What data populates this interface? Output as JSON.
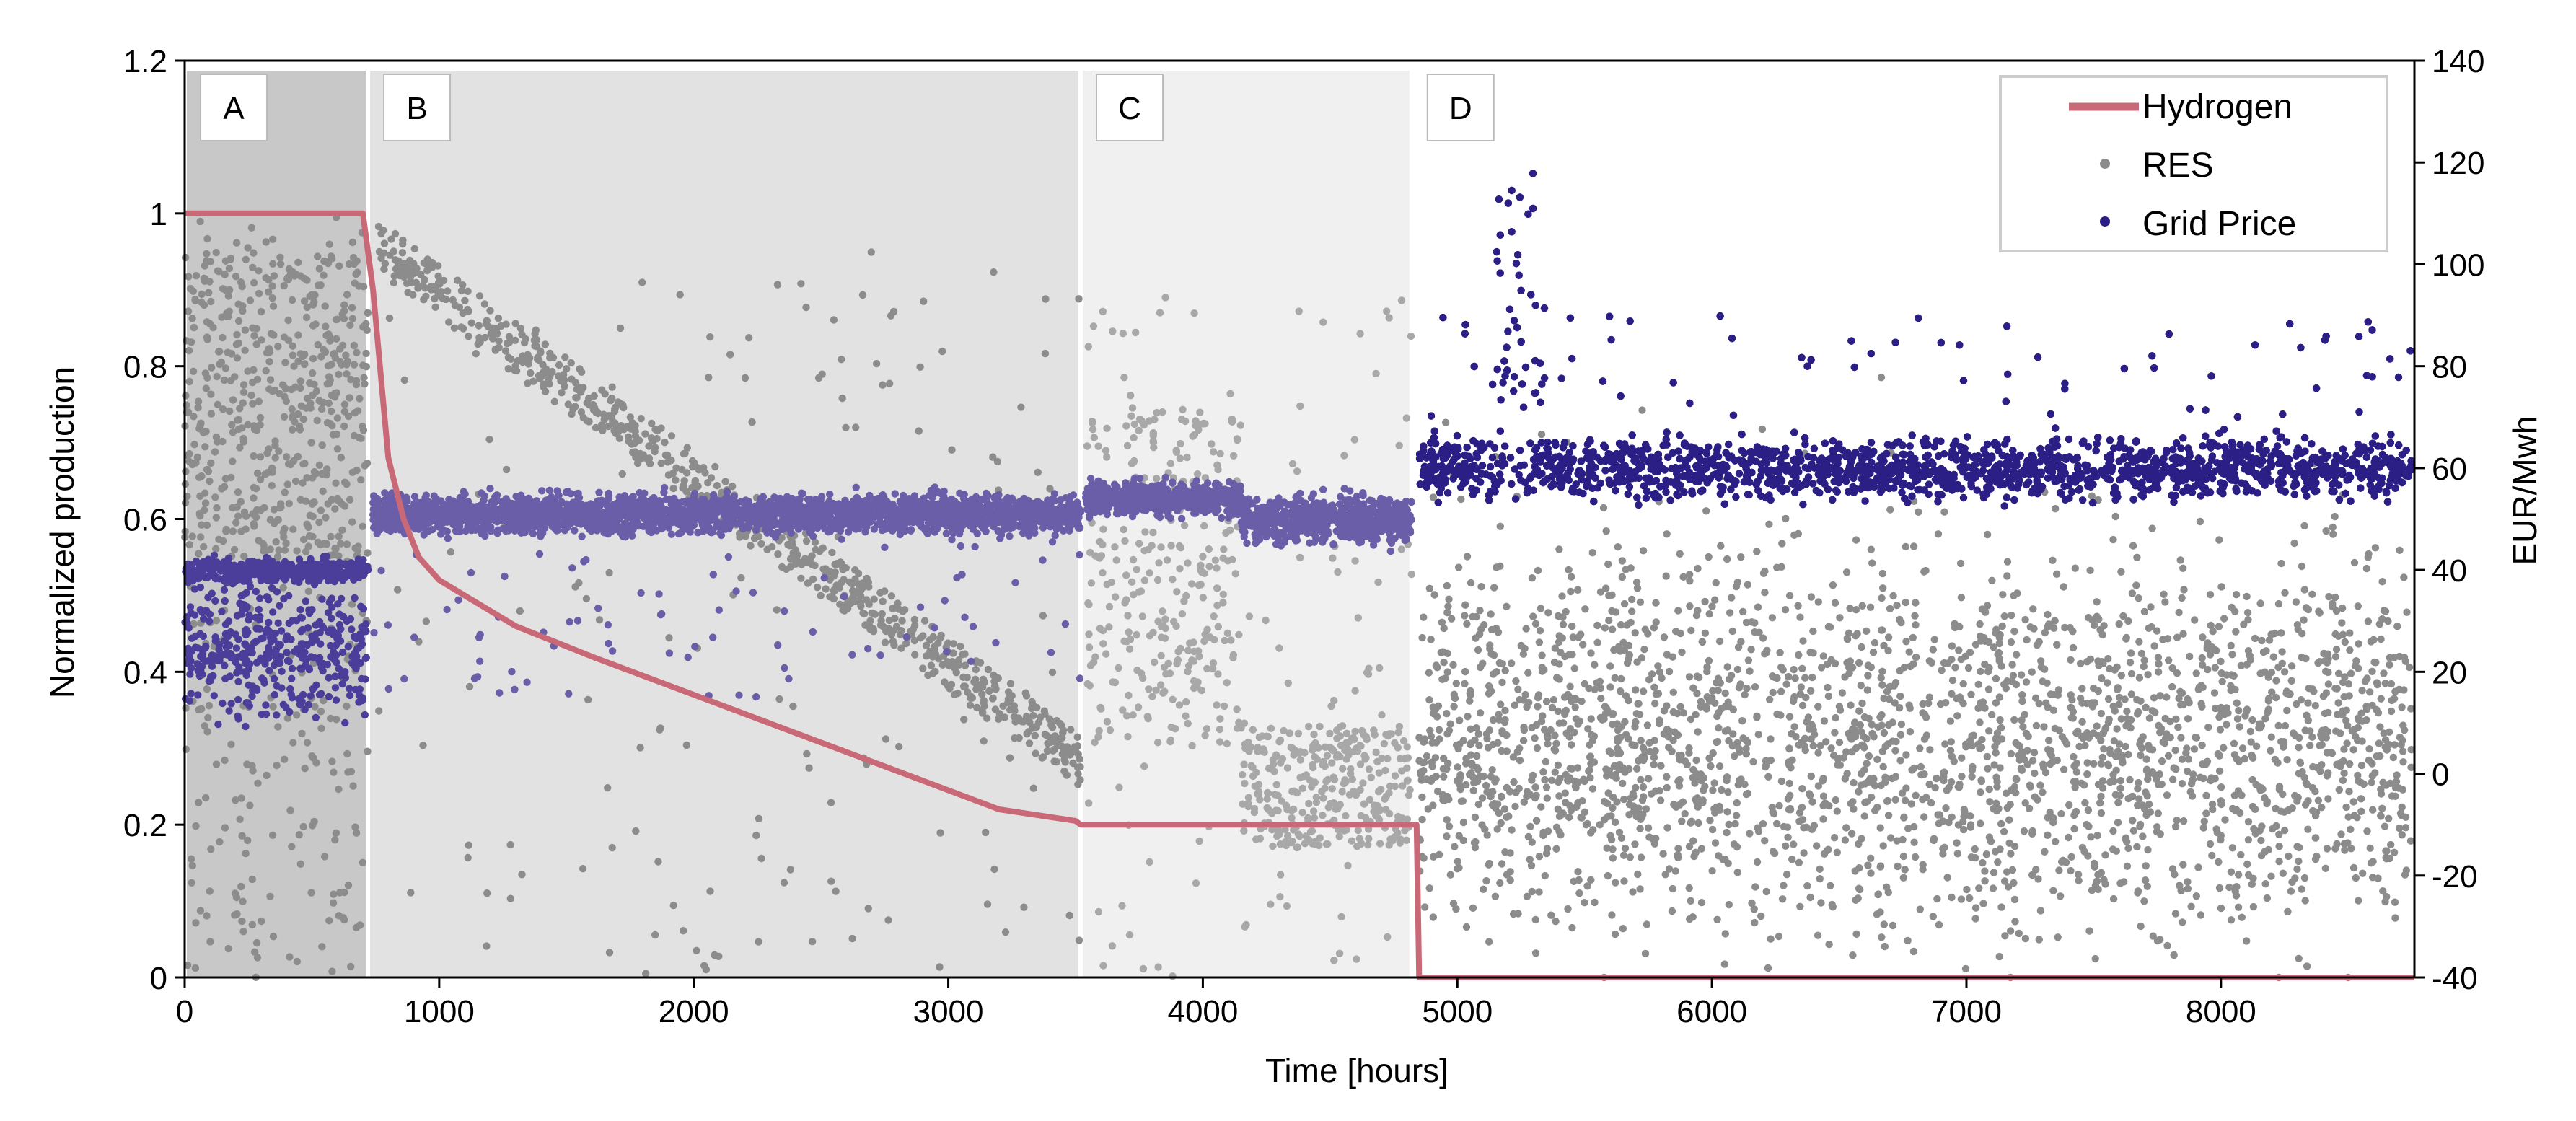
{
  "chart_data": {
    "type": "scatter",
    "xlabel": "Time [hours]",
    "ylabel": "Normalized production",
    "y2label": "EUR/Mwh",
    "xlim": [
      0,
      8760
    ],
    "ylim": [
      0,
      1.2
    ],
    "y2lim": [
      -40,
      140
    ],
    "x_ticks": [
      0,
      1000,
      2000,
      3000,
      4000,
      5000,
      6000,
      7000,
      8000
    ],
    "y_ticks": [
      "0",
      "0.2",
      "0.4",
      "0.6",
      "0.8",
      "1",
      "1.2"
    ],
    "y_tick_values": [
      0,
      0.2,
      0.4,
      0.6,
      0.8,
      1.0,
      1.2
    ],
    "y2_ticks": [
      -40,
      -20,
      0,
      20,
      40,
      60,
      80,
      100,
      120,
      140
    ],
    "grid": false,
    "legend_position": "top-right",
    "regions": [
      {
        "label": "A",
        "x_start": 0,
        "x_end": 720,
        "shade": "#c8c8c8"
      },
      {
        "label": "B",
        "x_start": 720,
        "x_end": 3520,
        "shade": "#e2e2e2"
      },
      {
        "label": "C",
        "x_start": 3520,
        "x_end": 4820,
        "shade": "#f0f0f0"
      },
      {
        "label": "D",
        "x_start": 4820,
        "x_end": 8760,
        "shade": "#ffffff"
      }
    ],
    "series": [
      {
        "name": "Hydrogen",
        "kind": "line",
        "axis": "left",
        "color": "#c96876",
        "x": [
          0,
          700,
          740,
          800,
          860,
          920,
          1000,
          1100,
          1300,
          1600,
          2000,
          2400,
          2800,
          3200,
          3500,
          3520,
          4840,
          4850,
          8760
        ],
        "y": [
          1.0,
          1.0,
          0.9,
          0.68,
          0.6,
          0.55,
          0.52,
          0.5,
          0.46,
          0.42,
          0.37,
          0.32,
          0.27,
          0.22,
          0.205,
          0.2,
          0.2,
          0.0,
          0.0
        ]
      },
      {
        "name": "RES",
        "kind": "scatter",
        "axis": "left",
        "color": "#8c8c8c",
        "description_range": "dense points mostly between 0 and 0.95"
      },
      {
        "name": "Grid Price",
        "kind": "scatter",
        "axis": "right",
        "color": "#2b1f86",
        "description_range": "mostly around 45-70 EUR/Mwh, peaks near 120"
      }
    ]
  }
}
